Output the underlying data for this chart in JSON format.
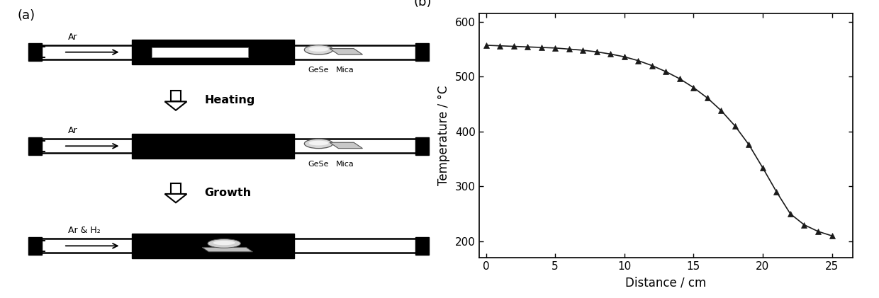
{
  "graph_x": [
    0,
    1,
    2,
    3,
    4,
    5,
    6,
    7,
    8,
    9,
    10,
    11,
    12,
    13,
    14,
    15,
    16,
    17,
    18,
    19,
    20,
    21,
    22,
    23,
    24,
    25
  ],
  "graph_y": [
    557,
    556,
    555,
    554,
    553,
    552,
    550,
    548,
    545,
    541,
    536,
    529,
    520,
    509,
    496,
    480,
    461,
    438,
    410,
    376,
    334,
    290,
    250,
    230,
    218,
    210
  ],
  "xlabel": "Distance / cm",
  "ylabel": "Temperature / °C",
  "panel_b_label": "(b)",
  "panel_a_label": "(a)",
  "xlim": [
    -0.5,
    26.5
  ],
  "ylim": [
    170,
    615
  ],
  "xticks": [
    0,
    5,
    10,
    15,
    20,
    25
  ],
  "yticks": [
    200,
    300,
    400,
    500,
    600
  ],
  "line_color": "#1a1a1a",
  "marker_color": "#1a1a1a",
  "bg_color": "#ffffff",
  "heating_label": "Heating",
  "growth_label": "Growth",
  "ar_label": "Ar",
  "ar_h2_label": "Ar & H₂",
  "gese_label": "GeSe",
  "mica_label": "Mica"
}
